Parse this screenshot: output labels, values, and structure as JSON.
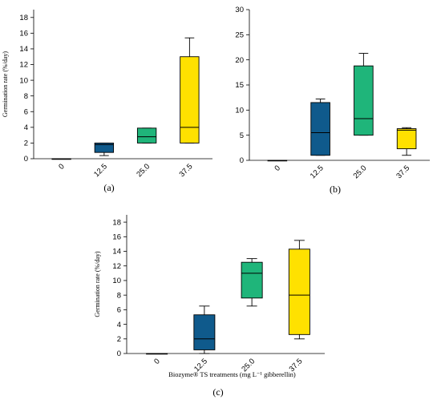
{
  "colors": {
    "c0": "#f2f2f2",
    "c125": "#0f5a8c",
    "c25": "#1fb57a",
    "c375": "#ffe100"
  },
  "chart_data": [
    {
      "type": "box",
      "panel_label": "(a)",
      "ylabel": "Germination rate (%/day)",
      "xlabel": "",
      "ylim": [
        0,
        19
      ],
      "yticks": [
        0,
        2,
        4,
        6,
        8,
        10,
        12,
        14,
        16,
        18
      ],
      "categories": [
        "0",
        "12.5",
        "25.0",
        "37.5"
      ],
      "boxes": [
        {
          "min": 0,
          "q1": 0,
          "median": 0,
          "q3": 0,
          "max": 0
        },
        {
          "min": 0.4,
          "q1": 0.8,
          "median": 1.8,
          "q3": 2.0,
          "max": 2.0
        },
        {
          "min": 2.0,
          "q1": 2.0,
          "median": 2.8,
          "q3": 3.9,
          "max": 3.9
        },
        {
          "min": 2.0,
          "q1": 2.0,
          "median": 4.0,
          "q3": 13.0,
          "max": 15.4
        }
      ]
    },
    {
      "type": "box",
      "panel_label": "(b)",
      "ylabel": "",
      "xlabel": "",
      "ylim": [
        0,
        30
      ],
      "yticks": [
        0,
        5,
        10,
        15,
        20,
        25,
        30
      ],
      "categories": [
        "0",
        "12.5",
        "25.0",
        "37.5"
      ],
      "boxes": [
        {
          "min": 0,
          "q1": 0,
          "median": 0,
          "q3": 0,
          "max": 0
        },
        {
          "min": 1.0,
          "q1": 1.0,
          "median": 5.5,
          "q3": 11.5,
          "max": 12.2
        },
        {
          "min": 5.0,
          "q1": 5.0,
          "median": 8.3,
          "q3": 18.8,
          "max": 21.3
        },
        {
          "min": 1.0,
          "q1": 2.3,
          "median": 6.0,
          "q3": 6.3,
          "max": 6.5
        }
      ]
    },
    {
      "type": "box",
      "panel_label": "(c)",
      "ylabel": "Germination rate (%/day)",
      "xlabel": "Biozyme® TS treatments (mg L⁻¹ gibberellin)",
      "ylim": [
        0,
        19
      ],
      "yticks": [
        0,
        2,
        4,
        6,
        8,
        10,
        12,
        14,
        16,
        18
      ],
      "categories": [
        "0",
        "12.5",
        "25.0",
        "37.5"
      ],
      "boxes": [
        {
          "min": 0,
          "q1": 0,
          "median": 0,
          "q3": 0,
          "max": 0
        },
        {
          "min": 0,
          "q1": 0.5,
          "median": 2.0,
          "q3": 5.3,
          "max": 6.5
        },
        {
          "min": 6.5,
          "q1": 7.6,
          "median": 11.0,
          "q3": 12.5,
          "max": 13.0
        },
        {
          "min": 2.0,
          "q1": 2.6,
          "median": 8.0,
          "q3": 14.3,
          "max": 15.5
        }
      ]
    }
  ]
}
